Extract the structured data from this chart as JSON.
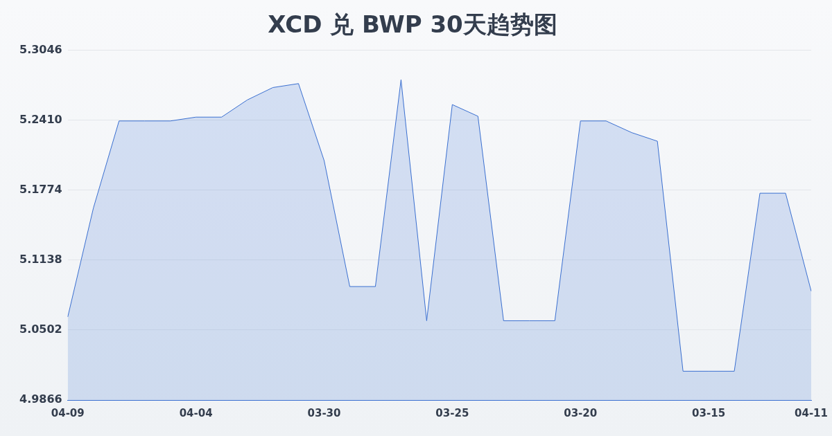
{
  "chart_data": {
    "type": "area",
    "title": "XCD 兑 BWP 30天趋势图",
    "categories": [
      "04-09",
      null,
      null,
      null,
      null,
      "04-04",
      null,
      null,
      null,
      null,
      "03-30",
      null,
      null,
      null,
      null,
      "03-25",
      null,
      null,
      null,
      null,
      "03-20",
      null,
      null,
      null,
      null,
      "03-15",
      null,
      null,
      null,
      "04-11"
    ],
    "series": [
      {
        "color": "#3a6fd0",
        "values": [
          5.0622,
          5.1612,
          5.2404,
          5.2404,
          5.2404,
          5.2439,
          5.2439,
          5.2595,
          5.2708,
          5.2744,
          5.2044,
          5.0898,
          5.0898,
          5.2779,
          5.0587,
          5.2553,
          5.2447,
          5.0587,
          5.0587,
          5.0587,
          5.2404,
          5.2404,
          5.2298,
          5.222,
          5.0128,
          5.0128,
          5.0128,
          5.1747,
          5.1747,
          5.0856
        ]
      }
    ],
    "ylim": [
      4.9866,
      5.3046
    ],
    "yticks": [
      4.9866,
      5.0502,
      5.1138,
      5.1774,
      {
        "value": 5.241,
        "label": "5.2410"
      },
      {
        "value": 5.3046,
        "label": "5.3046"
      }
    ],
    "grid": "y",
    "legend": false,
    "marker": "none",
    "line_style": "solid"
  }
}
